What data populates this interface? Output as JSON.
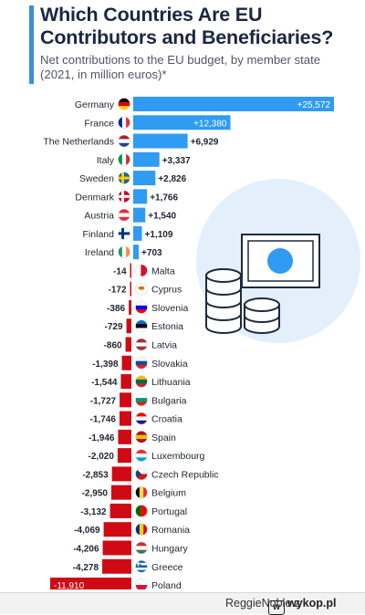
{
  "header": {
    "title": "Which Countries Are EU Contributors and Beneficiaries?",
    "subtitle": "Net contributions to the EU budget, by member state (2021, in million euros)*"
  },
  "footer": {
    "user": "ReggieNoble",
    "separator": "z",
    "site": "wykop.pl"
  },
  "colors": {
    "positive": "#2f9bf2",
    "negative": "#cf0a14",
    "accent": "#3a8fe0",
    "title": "#1b2741"
  },
  "chart_data": {
    "type": "bar",
    "orientation": "horizontal",
    "title": "Which Countries Are EU Contributors and Beneficiaries?",
    "subtitle": "Net contributions to the EU budget, by member state (2021, in million euros)*",
    "unit": "million euros",
    "categories": [
      "Germany",
      "France",
      "The Netherlands",
      "Italy",
      "Sweden",
      "Denmark",
      "Austria",
      "Finland",
      "Ireland",
      "Malta",
      "Cyprus",
      "Slovenia",
      "Estonia",
      "Latvia",
      "Slovakia",
      "Lithuania",
      "Bulgaria",
      "Croatia",
      "Spain",
      "Luxembourg",
      "Czech Republic",
      "Belgium",
      "Portugal",
      "Romania",
      "Hungary",
      "Greece",
      "Poland"
    ],
    "values": [
      25572,
      12380,
      6929,
      3337,
      2826,
      1766,
      1540,
      1109,
      703,
      -14,
      -172,
      -386,
      -729,
      -860,
      -1398,
      -1544,
      -1727,
      -1746,
      -1946,
      -2020,
      -2853,
      -2950,
      -3132,
      -4069,
      -4206,
      -4278,
      -11910
    ],
    "labels": [
      "+25,572",
      "+12,380",
      "+6,929",
      "+3,337",
      "+2,826",
      "+1,766",
      "+1,540",
      "+1,109",
      "+703",
      "-14",
      "-172",
      "-386",
      "-729",
      "-860",
      "-1,398",
      "-1,544",
      "-1,727",
      "-1,746",
      "-1,946",
      "-2,020",
      "-2,853",
      "-2,950",
      "-3,132",
      "-4,069",
      "-4,206",
      "-4,278",
      "-11,910"
    ],
    "flags": [
      "germany-flag-icon",
      "france-flag-icon",
      "netherlands-flag-icon",
      "italy-flag-icon",
      "sweden-flag-icon",
      "denmark-flag-icon",
      "austria-flag-icon",
      "finland-flag-icon",
      "ireland-flag-icon",
      "malta-flag-icon",
      "cyprus-flag-icon",
      "slovenia-flag-icon",
      "estonia-flag-icon",
      "latvia-flag-icon",
      "slovakia-flag-icon",
      "lithuania-flag-icon",
      "bulgaria-flag-icon",
      "croatia-flag-icon",
      "spain-flag-icon",
      "luxembourg-flag-icon",
      "czech-flag-icon",
      "belgium-flag-icon",
      "portugal-flag-icon",
      "romania-flag-icon",
      "hungary-flag-icon",
      "greece-flag-icon",
      "poland-flag-icon"
    ],
    "xlim": [
      -11910,
      25572
    ],
    "grid": false,
    "legend": "none"
  },
  "decoration": "coin-stacks-and-banknote-icon"
}
